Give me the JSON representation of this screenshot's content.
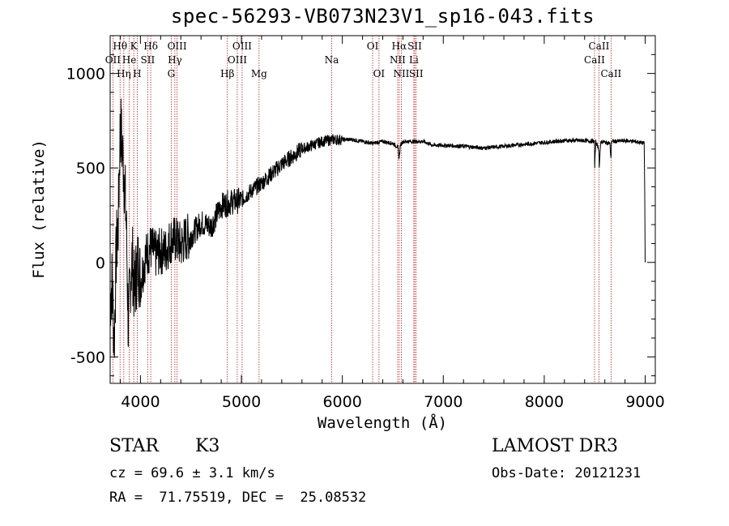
{
  "chart_data": {
    "type": "line",
    "title": "spec-56293-VB073N23V1_sp16-043.fits",
    "xlabel": "Wavelength (Å)",
    "ylabel": "Flux (relative)",
    "xlim": [
      3700,
      9100
    ],
    "ylim": [
      -640,
      1200
    ],
    "x_ticks": [
      4000,
      5000,
      6000,
      7000,
      8000,
      9000
    ],
    "y_ticks": [
      -500,
      0,
      500,
      1000
    ],
    "series": [
      {
        "name": "flux",
        "x": [
          3700,
          3720,
          3740,
          3760,
          3780,
          3800,
          3820,
          3840,
          3860,
          3880,
          3900,
          3920,
          3940,
          3960,
          3980,
          4000,
          4050,
          4100,
          4150,
          4200,
          4250,
          4300,
          4350,
          4400,
          4450,
          4500,
          4600,
          4700,
          4800,
          4900,
          5000,
          5100,
          5200,
          5300,
          5400,
          5500,
          5600,
          5700,
          5800,
          5900,
          6000,
          6100,
          6200,
          6300,
          6400,
          6500,
          6550,
          6562,
          6575,
          6600,
          6700,
          6800,
          6900,
          7000,
          7200,
          7400,
          7600,
          7800,
          8000,
          8200,
          8400,
          8498,
          8500,
          8510,
          8542,
          8545,
          8560,
          8650,
          8662,
          8665,
          8700,
          8800,
          8900,
          8990,
          9000
        ],
        "y": [
          -200,
          -100,
          -420,
          50,
          200,
          740,
          600,
          450,
          200,
          -350,
          -80,
          20,
          -160,
          -50,
          0,
          -100,
          30,
          80,
          40,
          60,
          60,
          120,
          120,
          90,
          130,
          140,
          210,
          190,
          300,
          320,
          330,
          380,
          420,
          470,
          520,
          560,
          600,
          620,
          640,
          650,
          650,
          650,
          640,
          630,
          640,
          630,
          610,
          550,
          620,
          640,
          640,
          640,
          620,
          620,
          615,
          605,
          615,
          625,
          635,
          645,
          645,
          640,
          500,
          640,
          600,
          500,
          640,
          630,
          540,
          640,
          640,
          645,
          640,
          630,
          0
        ]
      }
    ],
    "lines": [
      {
        "label": "Hθ",
        "x": 3798,
        "row": 1
      },
      {
        "label": "OII",
        "x": 3727,
        "row": 2
      },
      {
        "label": "Hη",
        "x": 3835,
        "row": 3
      },
      {
        "label": "He",
        "x": 3889,
        "row": 2
      },
      {
        "label": "K",
        "x": 3934,
        "row": 1
      },
      {
        "label": "H",
        "x": 3968,
        "row": 3
      },
      {
        "label": "SII",
        "x": 4072,
        "row": 2
      },
      {
        "label": "Hδ",
        "x": 4102,
        "row": 1
      },
      {
        "label": "OIII",
        "x": 4363,
        "row": 1
      },
      {
        "label": "Hγ",
        "x": 4341,
        "row": 2
      },
      {
        "label": "G",
        "x": 4305,
        "row": 3
      },
      {
        "label": "Hβ",
        "x": 4861,
        "row": 3
      },
      {
        "label": "OIII",
        "x": 5007,
        "row": 1
      },
      {
        "label": "OIII",
        "x": 4959,
        "row": 2
      },
      {
        "label": "Mg",
        "x": 5175,
        "row": 3
      },
      {
        "label": "Na",
        "x": 5894,
        "row": 2
      },
      {
        "label": "OI",
        "x": 6300,
        "row": 1
      },
      {
        "label": "OI",
        "x": 6363,
        "row": 3
      },
      {
        "label": "Hα",
        "x": 6563,
        "row": 1
      },
      {
        "label": "NII",
        "x": 6548,
        "row": 2
      },
      {
        "label": "NII",
        "x": 6584,
        "row": 3
      },
      {
        "label": "SII",
        "x": 6717,
        "row": 1
      },
      {
        "label": "Li",
        "x": 6708,
        "row": 2
      },
      {
        "label": "SII",
        "x": 6731,
        "row": 3
      },
      {
        "label": "CaII",
        "x": 8542,
        "row": 1
      },
      {
        "label": "CaII",
        "x": 8498,
        "row": 2
      },
      {
        "label": "CaII",
        "x": 8662,
        "row": 3
      }
    ]
  },
  "info": {
    "class": "STAR",
    "subclass": "K3",
    "survey": "LAMOST DR3",
    "cz": "cz = 69.6 ± 3.1 km/s",
    "obs_date": "Obs-Date: 20121231",
    "coords": "RA =  71.75519, DEC =  25.08532"
  }
}
